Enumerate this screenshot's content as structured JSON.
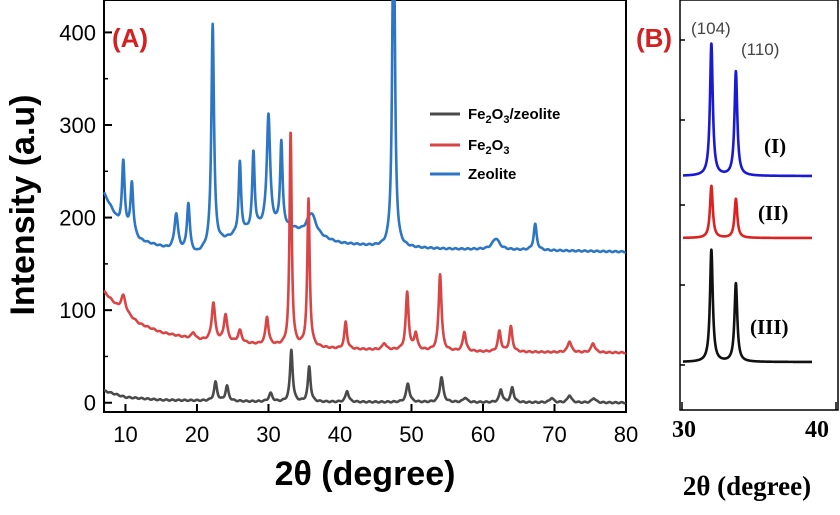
{
  "chart_data": [
    {
      "panel": "(A)",
      "type": "line",
      "xlabel": "2θ (degree)",
      "ylabel": "Intensity (a.u)",
      "xlim": [
        7,
        80
      ],
      "ylim": [
        -10,
        435
      ],
      "xticks": [
        "10",
        "20",
        "30",
        "40",
        "50",
        "60",
        "70",
        "80"
      ],
      "yticks": [
        "0",
        "100",
        "200",
        "300",
        "400"
      ],
      "legend": {
        "position": "top-right",
        "entries": [
          {
            "text": "Fe",
            "sub1": "2",
            "mid": "O",
            "sub2": "3",
            "tail": "/zeolite"
          },
          {
            "text": "Fe",
            "sub1": "2",
            "mid": "O",
            "sub2": "3",
            "tail": ""
          },
          {
            "text": "Zeolite",
            "sub1": "",
            "mid": "",
            "sub2": "",
            "tail": ""
          }
        ]
      },
      "series": [
        {
          "name": "Fe2O3/zeolite",
          "color": "#4a4a4a",
          "baseline": [
            [
              7,
              13
            ],
            [
              10,
              6
            ],
            [
              15,
              3
            ],
            [
              30,
              1
            ],
            [
              80,
              0
            ]
          ],
          "peaks": [
            [
              22.6,
              20,
              0.25
            ],
            [
              24.2,
              16,
              0.25
            ],
            [
              30.3,
              9,
              0.3
            ],
            [
              33.2,
              56,
              0.22
            ],
            [
              35.7,
              38,
              0.22
            ],
            [
              41,
              12,
              0.25
            ],
            [
              49.5,
              20,
              0.28
            ],
            [
              54.2,
              27,
              0.28
            ],
            [
              57.5,
              5,
              0.3
            ],
            [
              62.5,
              14,
              0.25
            ],
            [
              64.1,
              16,
              0.25
            ],
            [
              69.6,
              5,
              0.3
            ],
            [
              72.1,
              8,
              0.3
            ],
            [
              75.5,
              5,
              0.3
            ]
          ]
        },
        {
          "name": "Fe2O3",
          "color": "#d94545",
          "baseline": [
            [
              7,
              120
            ],
            [
              9,
              102
            ],
            [
              12,
              85
            ],
            [
              15,
              76
            ],
            [
              20,
              68
            ],
            [
              30,
              62
            ],
            [
              40,
              58
            ],
            [
              60,
              55
            ],
            [
              80,
              54
            ]
          ],
          "peaks": [
            [
              9.7,
              18,
              0.4
            ],
            [
              19.5,
              7,
              0.3
            ],
            [
              22.3,
              41,
              0.28
            ],
            [
              24,
              29,
              0.28
            ],
            [
              26,
              13,
              0.3
            ],
            [
              29.8,
              30,
              0.25
            ],
            [
              33.1,
              232,
              0.18
            ],
            [
              35.6,
              159,
              0.2
            ],
            [
              40.8,
              29,
              0.22
            ],
            [
              46.2,
              7,
              0.3
            ],
            [
              49.4,
              62,
              0.24
            ],
            [
              50.6,
              18,
              0.25
            ],
            [
              54,
              83,
              0.24
            ],
            [
              57.4,
              21,
              0.25
            ],
            [
              62.3,
              22,
              0.25
            ],
            [
              63.9,
              27,
              0.25
            ],
            [
              72.1,
              12,
              0.3
            ],
            [
              75.4,
              10,
              0.3
            ]
          ]
        },
        {
          "name": "Zeolite",
          "color": "#2d76c4",
          "baseline": [
            [
              7,
              226
            ],
            [
              9,
              195
            ],
            [
              12,
              175
            ],
            [
              16,
              166
            ],
            [
              20,
              160
            ],
            [
              23,
              172
            ],
            [
              26,
              182
            ],
            [
              30,
              190
            ],
            [
              33,
              188
            ],
            [
              35,
              181
            ],
            [
              40,
              172
            ],
            [
              46,
              168
            ],
            [
              55,
              166
            ],
            [
              65,
              165
            ],
            [
              80,
              163
            ]
          ],
          "peaks": [
            [
              9.7,
              70,
              0.22
            ],
            [
              10.9,
              55,
              0.22
            ],
            [
              17.1,
              39,
              0.3
            ],
            [
              18.8,
              52,
              0.24
            ],
            [
              22.2,
              240,
              0.22
            ],
            [
              26,
              76,
              0.2
            ],
            [
              27.9,
              83,
              0.2
            ],
            [
              30,
              120,
              0.28
            ],
            [
              31.8,
              91,
              0.2
            ],
            [
              36,
              25,
              0.8
            ],
            [
              47.5,
              420,
              0.2
            ],
            [
              61.8,
              12,
              0.6
            ],
            [
              67.3,
              28,
              0.25
            ]
          ]
        }
      ]
    },
    {
      "panel": "(B)",
      "type": "line",
      "xlabel": "2θ (degree)",
      "xlim": [
        30,
        40
      ],
      "xticks": [
        "30",
        "40"
      ],
      "annotations": [
        "(104)",
        "(110)"
      ],
      "series": [
        {
          "name": "(I)",
          "color": "#1a1ad6",
          "peaks": [
            [
              32.2,
              1.0
            ],
            [
              34.1,
              0.79
            ]
          ]
        },
        {
          "name": "(II)",
          "color": "#dd2222",
          "peaks": [
            [
              32.2,
              1.0
            ],
            [
              34.1,
              0.75
            ]
          ]
        },
        {
          "name": "(III)",
          "color": "#111111",
          "peaks": [
            [
              32.2,
              1.0
            ],
            [
              34.1,
              0.7
            ]
          ]
        }
      ]
    }
  ]
}
